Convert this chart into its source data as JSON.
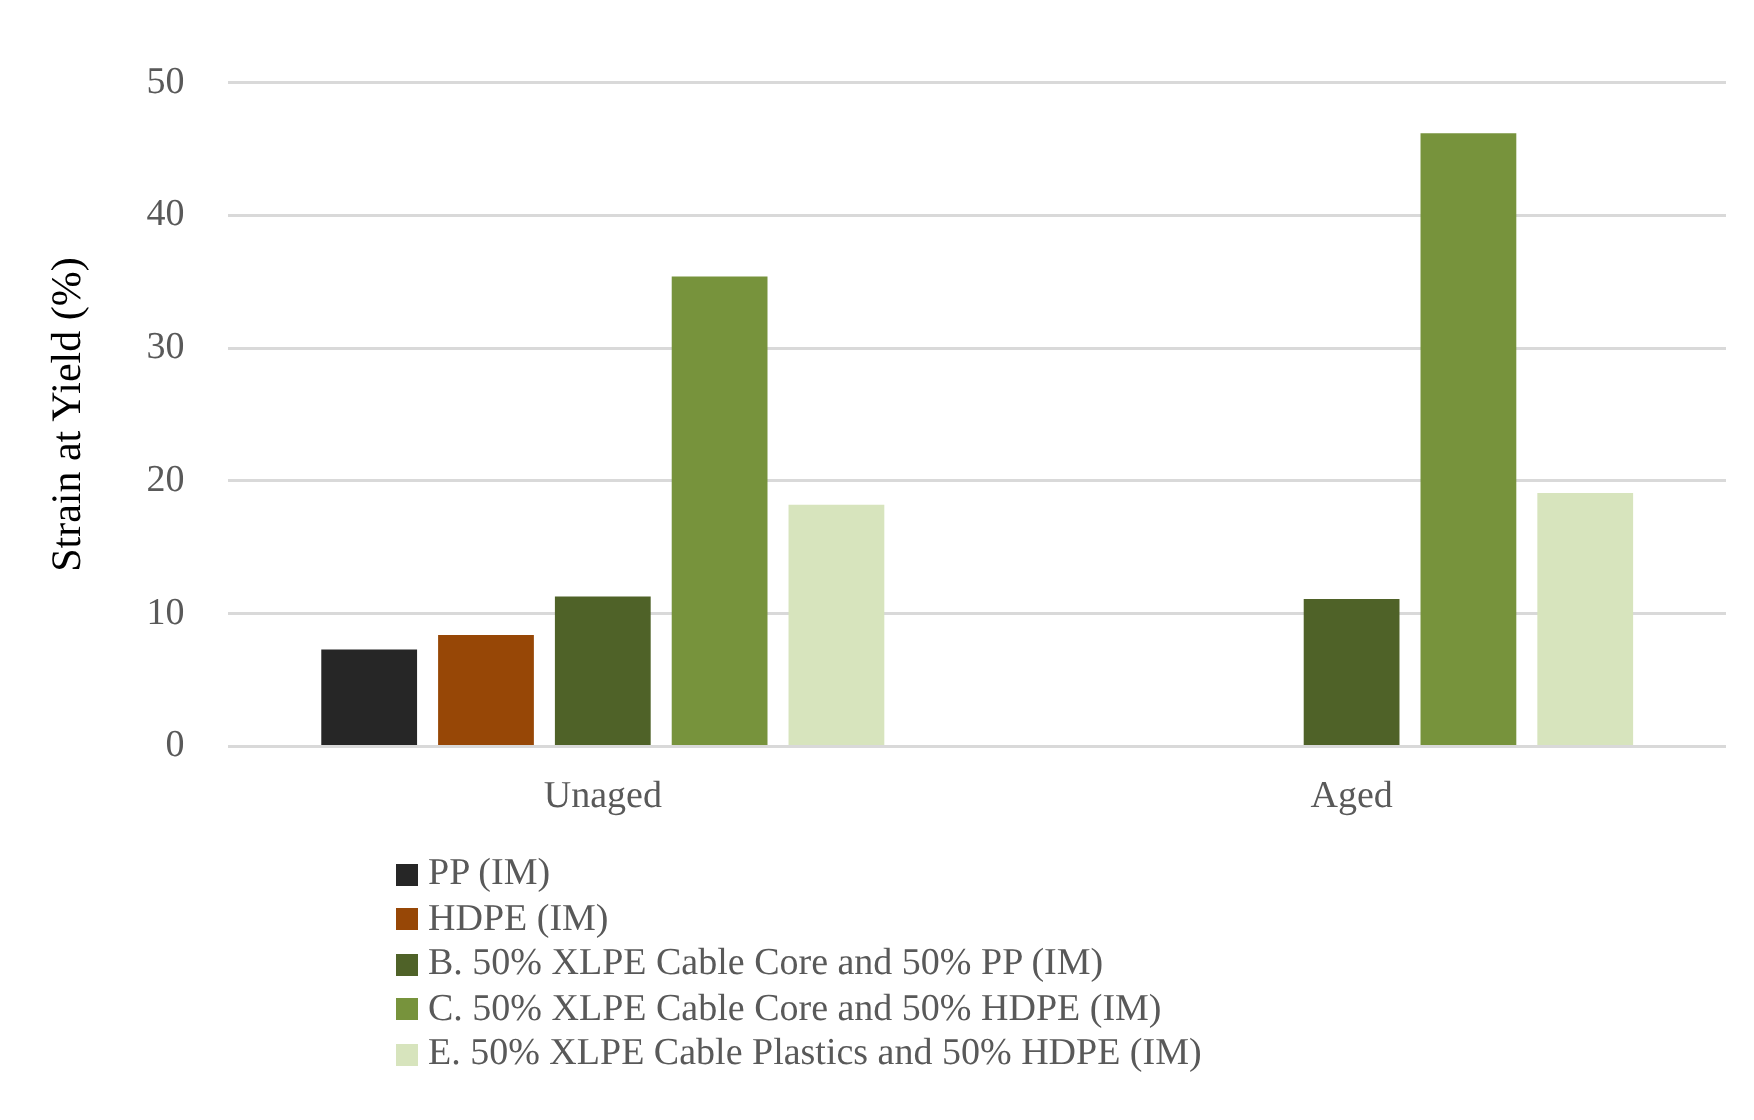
{
  "chart_data": {
    "type": "bar",
    "ylabel": "Strain at Yield (%)",
    "categories": [
      "Unaged",
      "Aged"
    ],
    "series": [
      {
        "name": "PP (IM)",
        "color": "#262626",
        "values": [
          7.3,
          null
        ]
      },
      {
        "name": "HDPE (IM)",
        "color": "#974706",
        "values": [
          8.4,
          null
        ]
      },
      {
        "name": "B. 50% XLPE Cable Core and 50% PP (IM)",
        "color": "#4f6228",
        "values": [
          11.3,
          11.1
        ]
      },
      {
        "name": "C. 50% XLPE Cable Core and 50% HDPE (IM)",
        "color": "#77933c",
        "values": [
          35.4,
          46.2
        ]
      },
      {
        "name": "E. 50% XLPE Cable Plastics and 50% HDPE (IM)",
        "color": "#d7e4bd",
        "values": [
          18.2,
          19.1
        ]
      }
    ],
    "ylim": [
      0,
      50
    ],
    "yticks": [
      0,
      10,
      20,
      30,
      40,
      50
    ],
    "grid": "y",
    "legend": "bottom"
  }
}
